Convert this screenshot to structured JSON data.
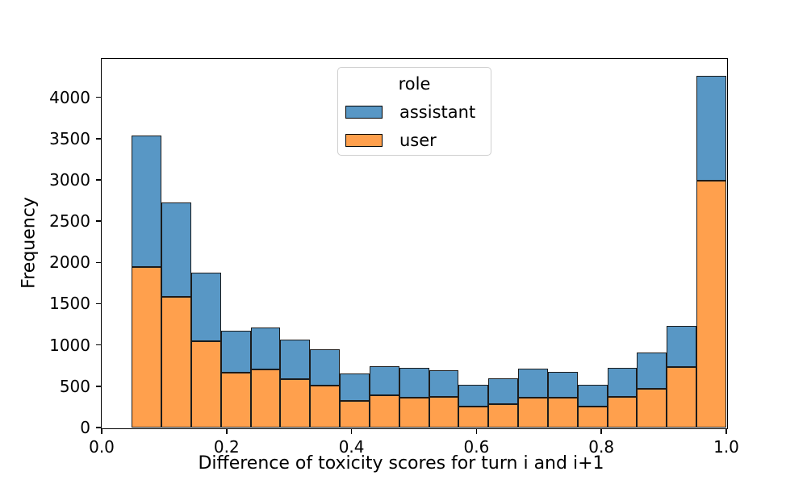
{
  "figure": {
    "xlabel": "Difference of toxicity scores for turn i and i+1",
    "ylabel": "Frequency",
    "background": "#ffffff"
  },
  "legend": {
    "title": "role",
    "items": [
      {
        "label": "assistant",
        "color": "#5897C5"
      },
      {
        "label": "user",
        "color": "#FFA04D"
      }
    ]
  },
  "chart_data": {
    "type": "bar",
    "subtype": "stacked_histogram",
    "title": "",
    "xlabel": "Difference of toxicity scores for turn i and i+1",
    "ylabel": "Frequency",
    "legend_title": "role",
    "legend_entries": [
      "assistant",
      "user"
    ],
    "legend_position": "upper center",
    "grid": false,
    "xlim": [
      0.0,
      1.0
    ],
    "ylim": [
      0,
      4465
    ],
    "x_tick_values": [
      0.0,
      0.2,
      0.4,
      0.6,
      0.8,
      1.0
    ],
    "x_tick_labels": [
      "0.0",
      "0.2",
      "0.4",
      "0.6",
      "0.8",
      "1.0"
    ],
    "y_tick_values": [
      0,
      500,
      1000,
      1500,
      2000,
      2500,
      3000,
      3500,
      4000
    ],
    "y_tick_labels": [
      "0",
      "500",
      "1000",
      "1500",
      "2000",
      "2500",
      "3000",
      "3500",
      "4000"
    ],
    "bin_edges": [
      0.048,
      0.0956,
      0.1432,
      0.1908,
      0.2384,
      0.286,
      0.3336,
      0.3812,
      0.4288,
      0.4764,
      0.524,
      0.5716,
      0.6192,
      0.6668,
      0.7144,
      0.762,
      0.8096,
      0.8572,
      0.9048,
      0.9524,
      1.0
    ],
    "stack_order_bottom_to_top": [
      "user",
      "assistant"
    ],
    "series": [
      {
        "name": "user",
        "color": "#FFA04D",
        "values": [
          1940,
          1580,
          1050,
          660,
          700,
          590,
          510,
          320,
          390,
          360,
          375,
          255,
          285,
          360,
          360,
          255,
          375,
          470,
          735,
          2990
        ]
      },
      {
        "name": "assistant",
        "color": "#5897C5",
        "values": [
          1600,
          1150,
          830,
          515,
          510,
          475,
          435,
          330,
          350,
          360,
          315,
          265,
          310,
          350,
          310,
          265,
          345,
          435,
          495,
          1270
        ]
      }
    ],
    "stacked_totals": [
      3540,
      2730,
      1880,
      1175,
      1210,
      1065,
      945,
      650,
      740,
      720,
      690,
      520,
      595,
      710,
      670,
      520,
      720,
      905,
      1230,
      4260
    ],
    "bar_edge_color": "#1b1b1b"
  }
}
